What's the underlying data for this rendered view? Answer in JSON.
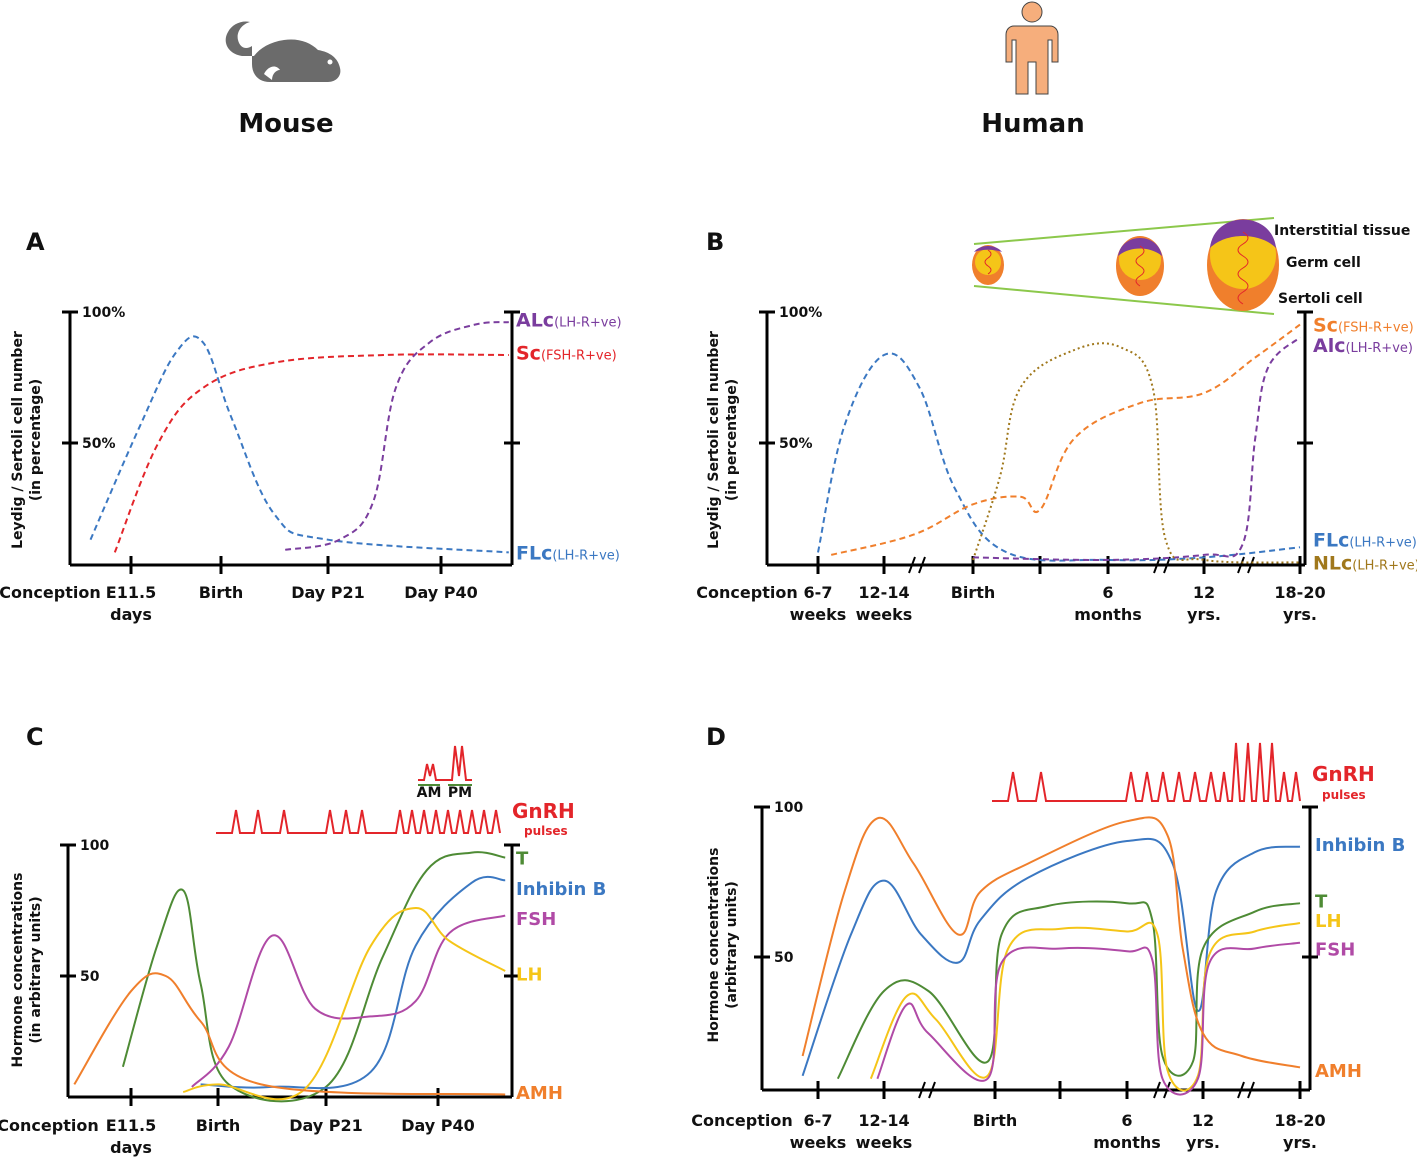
{
  "titles": {
    "mouse": "Mouse",
    "human": "Human"
  },
  "panel_letters": {
    "a": "A",
    "b": "B",
    "c": "C",
    "d": "D"
  },
  "colors": {
    "blue": "#3b78c2",
    "red": "#e3252a",
    "purple": "#7a3d9e",
    "orange": "#f07f2c",
    "brown": "#a0781c",
    "green": "#4e8b35",
    "yellow": "#f5c518",
    "magenta": "#b04aa6",
    "icon_gray": "#6b6b6b",
    "icon_human": "#f6ae7c",
    "green_line": "#8cc84b"
  },
  "testis_legend": {
    "interstitial": "Interstitial tissue",
    "germ": "Germ cell",
    "sertoli": "Sertoli cell"
  },
  "chart_data": [
    {
      "id": "A",
      "type": "line",
      "ylabel": [
        "Leydig / Sertoli cell number",
        "(in percentage)"
      ],
      "yticks": [
        "100%",
        "50%"
      ],
      "ylim": [
        0,
        100
      ],
      "xticks": [
        {
          "x": 0,
          "lines": [
            "Conception"
          ]
        },
        {
          "x": 1,
          "lines": [
            "E11.5",
            "days"
          ]
        },
        {
          "x": 2,
          "lines": [
            "Birth"
          ]
        },
        {
          "x": 3,
          "lines": [
            "Day P21"
          ]
        },
        {
          "x": 4,
          "lines": [
            "Day P40"
          ]
        }
      ],
      "series": [
        {
          "name": "FLc",
          "suffix": "(LH-R+ve)",
          "color": "blue",
          "dash": "dash",
          "label_y": 5,
          "points": [
            [
              0.5,
              10
            ],
            [
              1.1,
              55
            ],
            [
              1.5,
              84
            ],
            [
              1.8,
              88
            ],
            [
              2.1,
              58
            ],
            [
              2.5,
              20
            ],
            [
              3.0,
              10
            ],
            [
              4.6,
              5
            ]
          ]
        },
        {
          "name": "Sc",
          "suffix": "(FSH-R+ve)",
          "color": "red",
          "dash": "dash",
          "label_y": 84,
          "points": [
            [
              0.8,
              5
            ],
            [
              1.3,
              48
            ],
            [
              1.8,
              70
            ],
            [
              2.5,
              80
            ],
            [
              3.5,
              83
            ],
            [
              4.6,
              83
            ]
          ]
        },
        {
          "name": "ALc",
          "suffix": "(LH-R+ve)",
          "color": "purple",
          "dash": "dash",
          "label_y": 97,
          "points": [
            [
              2.6,
              6
            ],
            [
              3.1,
              10
            ],
            [
              3.4,
              25
            ],
            [
              3.6,
              70
            ],
            [
              3.9,
              88
            ],
            [
              4.3,
              95
            ],
            [
              4.6,
              96
            ]
          ]
        }
      ]
    },
    {
      "id": "B",
      "type": "line",
      "ylabel": [
        "Leydig / Sertoli cell number",
        "(in percentage)"
      ],
      "yticks": [
        "100%",
        "50%"
      ],
      "ylim": [
        0,
        100
      ],
      "xticks": [
        {
          "x": 0,
          "lines": [
            "Conception"
          ]
        },
        {
          "x": 1,
          "lines": [
            "6-7",
            "weeks"
          ]
        },
        {
          "x": 2,
          "lines": [
            "12-14",
            "weeks"
          ]
        },
        {
          "x": 3.5,
          "lines": [
            "Birth"
          ]
        },
        {
          "x": 5.5,
          "lines": [
            "6",
            "months"
          ]
        },
        {
          "x": 7,
          "lines": [
            "12",
            "yrs."
          ]
        },
        {
          "x": 8.5,
          "lines": [
            "18-20",
            "yrs."
          ]
        }
      ],
      "series": [
        {
          "name": "FLc",
          "suffix": "(LH-R+ve)",
          "color": "blue",
          "dash": "dash",
          "label_y": 10,
          "points": [
            [
              1,
              5
            ],
            [
              1.4,
              55
            ],
            [
              2.0,
              83
            ],
            [
              2.6,
              70
            ],
            [
              3.2,
              30
            ],
            [
              4,
              5
            ],
            [
              5.5,
              2
            ],
            [
              7,
              3
            ],
            [
              8.5,
              7
            ]
          ]
        },
        {
          "name": "Sc",
          "suffix": "(FSH-R+ve)",
          "color": "orange",
          "dash": "dash",
          "label_y": 95,
          "points": [
            [
              1.2,
              4
            ],
            [
              2.5,
              12
            ],
            [
              3.5,
              24
            ],
            [
              4.2,
              27
            ],
            [
              4.5,
              22
            ],
            [
              5.0,
              50
            ],
            [
              6.0,
              64
            ],
            [
              7.0,
              68
            ],
            [
              7.8,
              82
            ],
            [
              8.5,
              95
            ]
          ]
        },
        {
          "name": "Alc",
          "suffix": "(LH-R+ve)",
          "color": "purple",
          "dash": "dash",
          "label_y": 87,
          "points": [
            [
              3.5,
              3
            ],
            [
              5.5,
              2
            ],
            [
              7,
              4
            ],
            [
              7.6,
              8
            ],
            [
              7.8,
              50
            ],
            [
              8.0,
              78
            ],
            [
              8.5,
              90
            ]
          ]
        },
        {
          "name": "NLc",
          "suffix": "(LH-R+ve)",
          "color": "brown",
          "dash": "dot",
          "label_y": 1,
          "points": [
            [
              3.5,
              2
            ],
            [
              3.9,
              35
            ],
            [
              4.2,
              70
            ],
            [
              5.0,
              85
            ],
            [
              5.7,
              86
            ],
            [
              6.2,
              70
            ],
            [
              6.4,
              10
            ],
            [
              7,
              2
            ],
            [
              8.5,
              1
            ]
          ]
        }
      ]
    },
    {
      "id": "C",
      "type": "line",
      "ylabel": [
        "Hormone concentrations",
        "(in arbitrary units)"
      ],
      "yticks": [
        "100",
        "50"
      ],
      "ylim": [
        0,
        100
      ],
      "xticks": [
        {
          "x": 0,
          "lines": [
            "Conception"
          ]
        },
        {
          "x": 1,
          "lines": [
            "E11.5",
            "days"
          ]
        },
        {
          "x": 2,
          "lines": [
            "Birth"
          ]
        },
        {
          "x": 3,
          "lines": [
            "Day P21"
          ]
        },
        {
          "x": 4,
          "lines": [
            "Day P40"
          ]
        }
      ],
      "pulses_label": [
        "GnRH",
        "pulses"
      ],
      "am_pm": [
        "AM",
        "PM"
      ],
      "series": [
        {
          "name": "T",
          "color": "green",
          "label_y": 95,
          "points": [
            [
              0.9,
              12
            ],
            [
              1.3,
              60
            ],
            [
              1.6,
              82
            ],
            [
              1.8,
              45
            ],
            [
              2.1,
              5
            ],
            [
              3.0,
              4
            ],
            [
              3.5,
              55
            ],
            [
              3.9,
              90
            ],
            [
              4.3,
              97
            ],
            [
              4.6,
              95
            ]
          ]
        },
        {
          "name": "Inhibin B",
          "color": "blue",
          "label_y": 83,
          "points": [
            [
              1.8,
              5
            ],
            [
              2.5,
              4
            ],
            [
              3.4,
              10
            ],
            [
              3.8,
              60
            ],
            [
              4.3,
              85
            ],
            [
              4.6,
              86
            ]
          ]
        },
        {
          "name": "FSH",
          "color": "magenta",
          "label_y": 71,
          "points": [
            [
              1.7,
              4
            ],
            [
              2.1,
              20
            ],
            [
              2.5,
              64
            ],
            [
              2.9,
              35
            ],
            [
              3.4,
              32
            ],
            [
              3.8,
              38
            ],
            [
              4.1,
              65
            ],
            [
              4.6,
              72
            ]
          ]
        },
        {
          "name": "LH",
          "color": "yellow",
          "label_y": 49,
          "points": [
            [
              1.6,
              2
            ],
            [
              2.0,
              5
            ],
            [
              2.8,
              3
            ],
            [
              3.4,
              60
            ],
            [
              3.8,
              75
            ],
            [
              4.1,
              62
            ],
            [
              4.6,
              50
            ]
          ]
        },
        {
          "name": "AMH",
          "color": "orange",
          "label_y": 2,
          "points": [
            [
              0.3,
              5
            ],
            [
              1.0,
              42
            ],
            [
              1.4,
              48
            ],
            [
              1.8,
              30
            ],
            [
              2.4,
              5
            ],
            [
              4.6,
              1
            ]
          ]
        }
      ]
    },
    {
      "id": "D",
      "type": "line",
      "ylabel": [
        "Hormone concentrations",
        "(arbitrary units)"
      ],
      "yticks": [
        "100",
        "50"
      ],
      "ylim": [
        0,
        100
      ],
      "xticks": [
        {
          "x": 0,
          "lines": [
            "Conception"
          ]
        },
        {
          "x": 1,
          "lines": [
            "6-7",
            "weeks"
          ]
        },
        {
          "x": 2,
          "lines": [
            "12-14",
            "weeks"
          ]
        },
        {
          "x": 3.5,
          "lines": [
            "Birth"
          ]
        },
        {
          "x": 5.5,
          "lines": [
            "6",
            "months"
          ]
        },
        {
          "x": 7,
          "lines": [
            "12",
            "yrs."
          ]
        },
        {
          "x": 8.5,
          "lines": [
            "18-20",
            "yrs."
          ]
        }
      ],
      "pulses_label": [
        "GnRH",
        "pulses"
      ],
      "series": [
        {
          "name": "Inhibin B",
          "color": "blue",
          "label_y": 87,
          "points": [
            [
              0.8,
              5
            ],
            [
              1.5,
              55
            ],
            [
              2.0,
              74
            ],
            [
              2.5,
              55
            ],
            [
              3.0,
              45
            ],
            [
              3.3,
              60
            ],
            [
              4.0,
              75
            ],
            [
              5.5,
              88
            ],
            [
              6.4,
              80
            ],
            [
              6.9,
              28
            ],
            [
              7.2,
              70
            ],
            [
              7.8,
              84
            ],
            [
              8.5,
              86
            ]
          ]
        },
        {
          "name": "T",
          "color": "green",
          "label_y": 67,
          "points": [
            [
              1.3,
              4
            ],
            [
              2.0,
              35
            ],
            [
              2.6,
              35
            ],
            [
              3.4,
              10
            ],
            [
              3.6,
              55
            ],
            [
              4.3,
              65
            ],
            [
              5.5,
              66
            ],
            [
              6.0,
              60
            ],
            [
              6.2,
              12
            ],
            [
              6.8,
              10
            ],
            [
              7.0,
              50
            ],
            [
              7.8,
              63
            ],
            [
              8.5,
              66
            ]
          ]
        },
        {
          "name": "LH",
          "color": "yellow",
          "label_y": 60,
          "points": [
            [
              1.8,
              4
            ],
            [
              2.3,
              33
            ],
            [
              2.7,
              25
            ],
            [
              3.4,
              5
            ],
            [
              3.7,
              50
            ],
            [
              4.5,
              57
            ],
            [
              5.5,
              56
            ],
            [
              6.1,
              55
            ],
            [
              6.3,
              7
            ],
            [
              6.9,
              5
            ],
            [
              7.1,
              48
            ],
            [
              7.8,
              56
            ],
            [
              8.5,
              59
            ]
          ]
        },
        {
          "name": "FSH",
          "color": "magenta",
          "label_y": 50,
          "points": [
            [
              1.9,
              4
            ],
            [
              2.3,
              30
            ],
            [
              2.6,
              20
            ],
            [
              3.4,
              4
            ],
            [
              3.6,
              45
            ],
            [
              4.5,
              50
            ],
            [
              5.5,
              49
            ],
            [
              6.0,
              46
            ],
            [
              6.2,
              4
            ],
            [
              6.9,
              4
            ],
            [
              7.1,
              45
            ],
            [
              7.8,
              50
            ],
            [
              8.5,
              52
            ]
          ]
        },
        {
          "name": "AMH",
          "color": "orange",
          "label_y": 7,
          "points": [
            [
              0.8,
              12
            ],
            [
              1.4,
              70
            ],
            [
              1.9,
              96
            ],
            [
              2.4,
              80
            ],
            [
              3.0,
              55
            ],
            [
              3.3,
              70
            ],
            [
              4.0,
              80
            ],
            [
              5.5,
              95
            ],
            [
              6.3,
              90
            ],
            [
              6.6,
              50
            ],
            [
              7.0,
              20
            ],
            [
              7.6,
              12
            ],
            [
              8.5,
              8
            ]
          ]
        }
      ]
    }
  ]
}
